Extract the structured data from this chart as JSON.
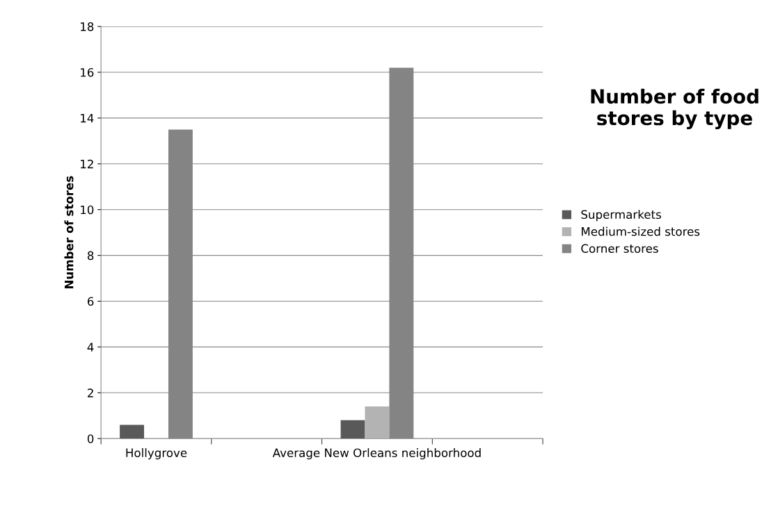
{
  "chart_data": {
    "type": "bar",
    "title": "Number of food stores by type",
    "ylabel": "Number of stores",
    "categories": [
      "Hollygrove",
      null,
      "Average New Orleans neighborhood",
      null
    ],
    "series": [
      {
        "name": "Supermarkets",
        "color": "#595959",
        "values": [
          0.6,
          null,
          0.8,
          null
        ]
      },
      {
        "name": "Medium-sized stores",
        "color": "#b3b3b3",
        "values": [
          0,
          null,
          1.4,
          null
        ]
      },
      {
        "name": "Corner stores",
        "color": "#848484",
        "values": [
          13.5,
          null,
          16.2,
          null
        ]
      }
    ],
    "ylim": [
      0,
      18
    ],
    "yticks": [
      0,
      2,
      4,
      6,
      8,
      10,
      12,
      14,
      16,
      18
    ],
    "grid": "y",
    "legend": "right"
  }
}
